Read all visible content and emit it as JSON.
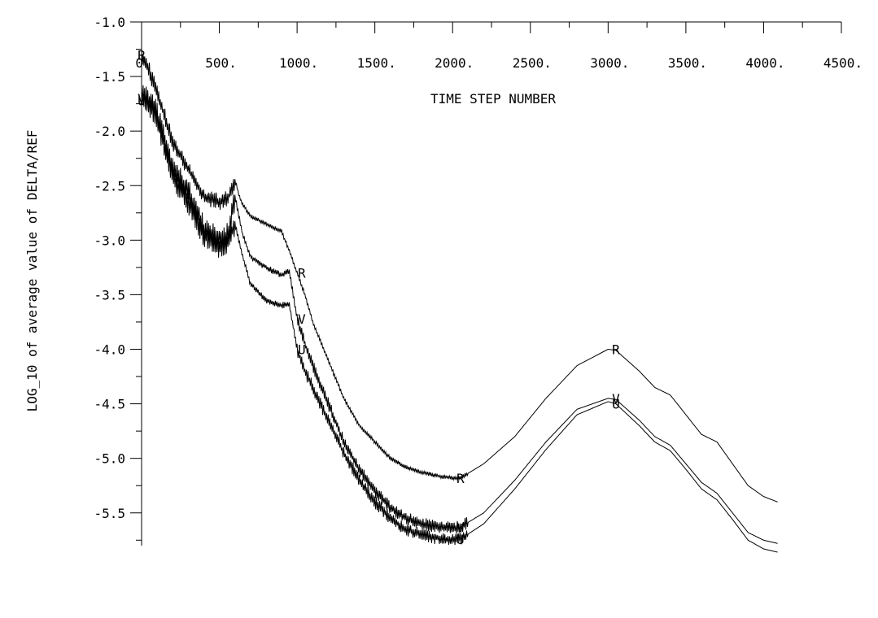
{
  "chart_data": {
    "type": "line",
    "title": "",
    "xlabel": "TIME STEP NUMBER",
    "ylabel": "LOG_10 of average value of DELTA/REF",
    "xlim": [
      0,
      4500
    ],
    "ylim": [
      -5.8,
      -1.0
    ],
    "x_ticks": [
      0,
      500,
      1000,
      1500,
      2000,
      2500,
      3000,
      3500,
      4000,
      4500
    ],
    "x_tick_labels": [
      "0.",
      "500.",
      "1000.",
      "1500.",
      "2000.",
      "2500.",
      "3000.",
      "3500.",
      "4000.",
      "4500."
    ],
    "x_minor_step": 250,
    "y_ticks": [
      -1.0,
      -1.5,
      -2.0,
      -2.5,
      -3.0,
      -3.5,
      -4.0,
      -4.5,
      -5.0,
      -5.5
    ],
    "y_tick_labels": [
      "-1.0",
      "-1.5",
      "-2.0",
      "-2.5",
      "-3.0",
      "-3.5",
      "-4.0",
      "-4.5",
      "-5.0",
      "-5.5"
    ],
    "y_minor_step": 0.25,
    "grid": false,
    "line_color": "#000000",
    "series": [
      {
        "marker_label": "R",
        "x": [
          0,
          50,
          100,
          200,
          300,
          400,
          500,
          560,
          600,
          640,
          700,
          800,
          900,
          950,
          1000,
          1050,
          1100,
          1200,
          1300,
          1400,
          1500,
          1600,
          1700,
          1800,
          1900,
          2000,
          2050,
          2200,
          2400,
          2600,
          2800,
          3000,
          3050,
          3200,
          3300,
          3400,
          3500,
          3600,
          3700,
          3800,
          3900,
          4000,
          4090
        ],
        "y": [
          -1.3,
          -1.45,
          -1.65,
          -2.1,
          -2.35,
          -2.6,
          -2.65,
          -2.6,
          -2.45,
          -2.65,
          -2.78,
          -2.85,
          -2.92,
          -3.1,
          -3.3,
          -3.5,
          -3.75,
          -4.1,
          -4.45,
          -4.7,
          -4.85,
          -5.0,
          -5.08,
          -5.13,
          -5.16,
          -5.18,
          -5.18,
          -5.05,
          -4.8,
          -4.45,
          -4.15,
          -4.0,
          -4.01,
          -4.2,
          -4.35,
          -4.42,
          -4.6,
          -4.78,
          -4.85,
          -5.05,
          -5.25,
          -5.35,
          -5.4
        ],
        "noise": [
          [
            0,
            600,
            0.08
          ],
          [
            600,
            2100,
            0.02
          ]
        ],
        "marker_points": [
          [
            0,
            -1.3
          ],
          [
            1030,
            -3.3
          ],
          [
            2050,
            -5.18
          ],
          [
            3050,
            -4.0
          ]
        ]
      },
      {
        "marker_label": "V",
        "x": [
          0,
          50,
          100,
          200,
          300,
          400,
          500,
          560,
          600,
          650,
          700,
          800,
          900,
          950,
          1000,
          1050,
          1100,
          1200,
          1300,
          1400,
          1500,
          1600,
          1700,
          1800,
          1900,
          2000,
          2050,
          2200,
          2400,
          2600,
          2800,
          3000,
          3050,
          3200,
          3300,
          3400,
          3500,
          3600,
          3700,
          3800,
          3900,
          4000,
          4090
        ],
        "y": [
          -1.65,
          -1.72,
          -1.85,
          -2.35,
          -2.55,
          -2.9,
          -3.0,
          -2.95,
          -2.6,
          -2.95,
          -3.15,
          -3.25,
          -3.32,
          -3.28,
          -3.72,
          -3.95,
          -4.15,
          -4.5,
          -4.85,
          -5.1,
          -5.3,
          -5.45,
          -5.55,
          -5.6,
          -5.63,
          -5.64,
          -5.63,
          -5.5,
          -5.2,
          -4.85,
          -4.55,
          -4.45,
          -4.46,
          -4.65,
          -4.8,
          -4.88,
          -5.05,
          -5.22,
          -5.32,
          -5.5,
          -5.68,
          -5.75,
          -5.78
        ],
        "noise": [
          [
            0,
            600,
            0.12
          ],
          [
            600,
            1000,
            0.03
          ],
          [
            1000,
            2100,
            0.06
          ]
        ],
        "marker_points": [
          [
            0,
            -1.7
          ],
          [
            1030,
            -3.72
          ],
          [
            2050,
            -5.63
          ],
          [
            3050,
            -4.45
          ]
        ]
      },
      {
        "marker_label": "U",
        "x": [
          0,
          50,
          100,
          200,
          300,
          400,
          500,
          560,
          600,
          650,
          700,
          800,
          900,
          950,
          1000,
          1050,
          1100,
          1200,
          1300,
          1400,
          1500,
          1600,
          1700,
          1800,
          1900,
          2000,
          2050,
          2200,
          2400,
          2600,
          2800,
          3000,
          3050,
          3200,
          3300,
          3400,
          3500,
          3600,
          3700,
          3800,
          3900,
          4000,
          4090
        ],
        "y": [
          -1.7,
          -1.75,
          -1.9,
          -2.4,
          -2.65,
          -2.95,
          -3.05,
          -3.0,
          -2.85,
          -3.15,
          -3.4,
          -3.55,
          -3.6,
          -3.58,
          -4.0,
          -4.2,
          -4.35,
          -4.65,
          -4.95,
          -5.2,
          -5.4,
          -5.55,
          -5.65,
          -5.7,
          -5.73,
          -5.75,
          -5.74,
          -5.6,
          -5.28,
          -4.92,
          -4.6,
          -4.48,
          -4.5,
          -4.7,
          -4.85,
          -4.93,
          -5.1,
          -5.28,
          -5.38,
          -5.56,
          -5.75,
          -5.83,
          -5.86
        ],
        "noise": [
          [
            0,
            600,
            0.12
          ],
          [
            600,
            1000,
            0.03
          ],
          [
            1000,
            2100,
            0.06
          ]
        ],
        "marker_points": [
          [
            0,
            -1.72
          ],
          [
            1030,
            -4.0
          ],
          [
            2050,
            -5.74
          ],
          [
            3050,
            -4.5
          ]
        ]
      }
    ]
  }
}
